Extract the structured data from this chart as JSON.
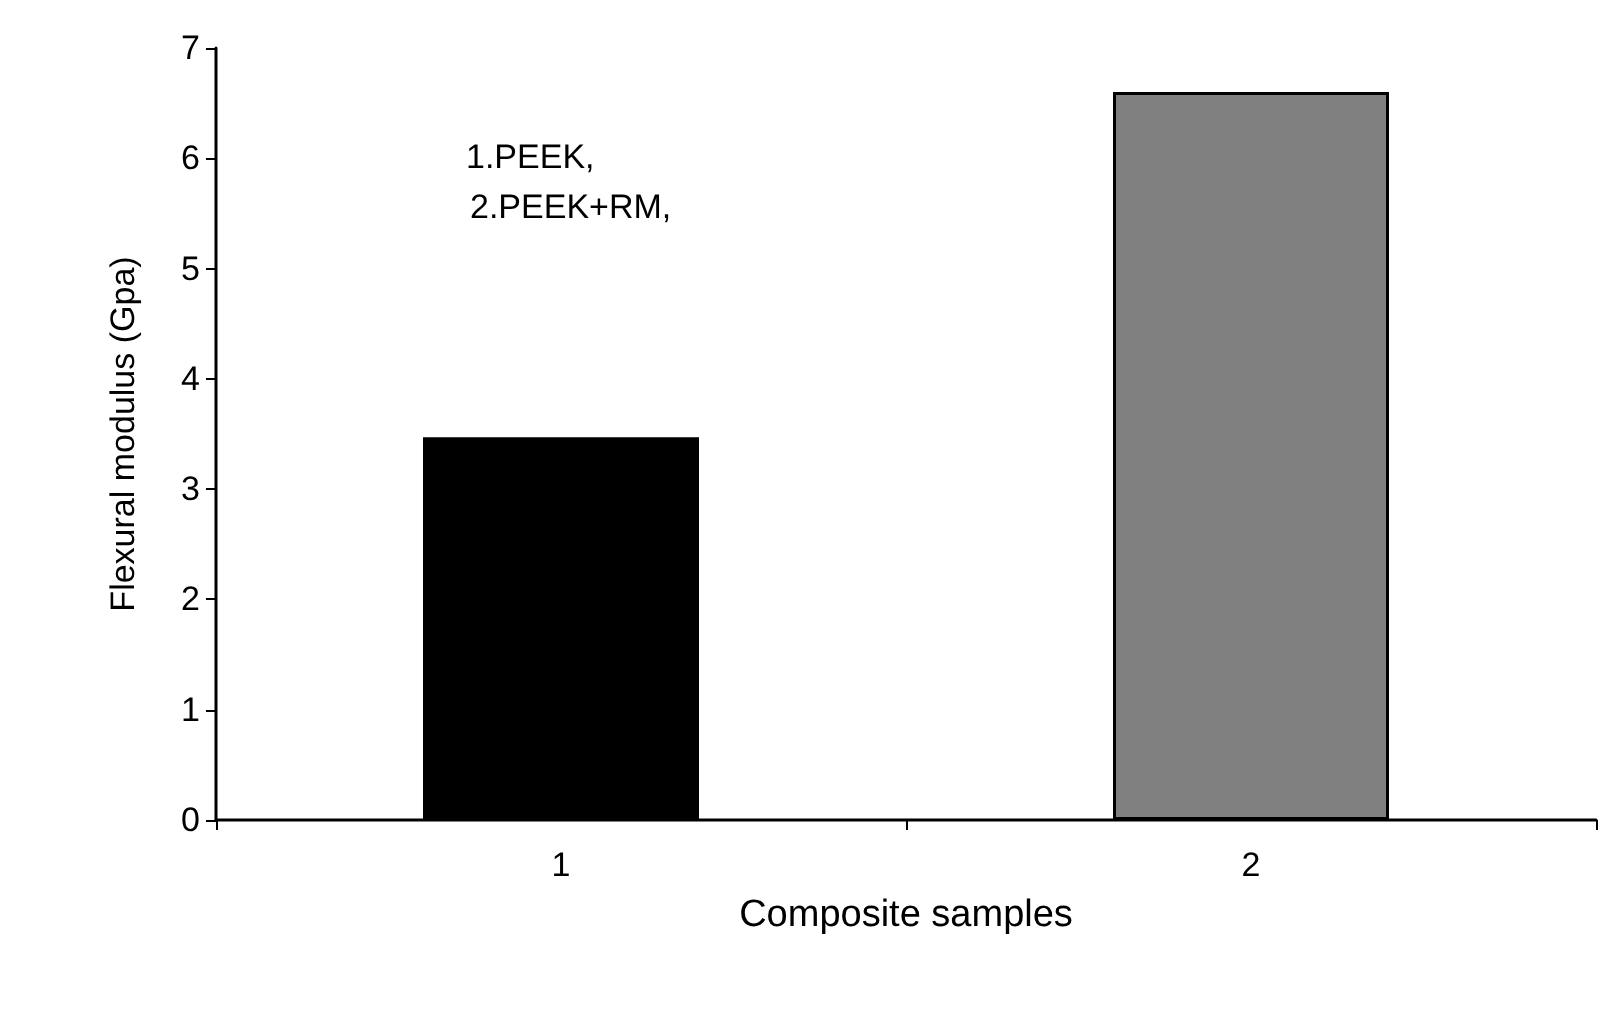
{
  "chart_data": {
    "type": "bar",
    "xlabel": "Composite samples",
    "ylabel": "Flexural modulus (Gpa)",
    "categories": [
      "1",
      "2"
    ],
    "values": [
      3.47,
      6.6
    ],
    "colors": [
      "#000000",
      "#808080"
    ],
    "ylim": [
      0,
      7
    ],
    "yticks": [
      0,
      1,
      2,
      3,
      4,
      5,
      6,
      7
    ],
    "grid": false,
    "annotations": [
      "1.PEEK,",
      "2.PEEK+RM,"
    ]
  }
}
